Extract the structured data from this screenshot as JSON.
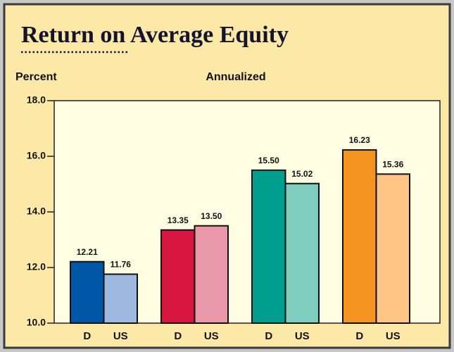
{
  "chart_data": {
    "type": "bar",
    "title": "Return on Average Equity",
    "y_label": "Percent",
    "subtitle": "Annualized",
    "categories": [
      "D",
      "US",
      "D",
      "US",
      "D",
      "US",
      "D",
      "US"
    ],
    "values": [
      12.21,
      11.76,
      13.35,
      13.5,
      15.5,
      15.02,
      16.23,
      15.36
    ],
    "value_labels": [
      "12.21",
      "11.76",
      "13.35",
      "13.50",
      "15.50",
      "15.02",
      "16.23",
      "15.36"
    ],
    "colors": [
      "#0057a8",
      "#9fb8e0",
      "#d7163f",
      "#e898a8",
      "#009e8e",
      "#7fcdbf",
      "#f39320",
      "#fdc585"
    ],
    "ylim": [
      10,
      18
    ],
    "yticks": [
      {
        "value": 10,
        "label": "10.0"
      },
      {
        "value": 12,
        "label": "12.0"
      },
      {
        "value": 14,
        "label": "14.0"
      },
      {
        "value": 16,
        "label": "16.0"
      },
      {
        "value": 18,
        "label": "18.0"
      }
    ]
  }
}
